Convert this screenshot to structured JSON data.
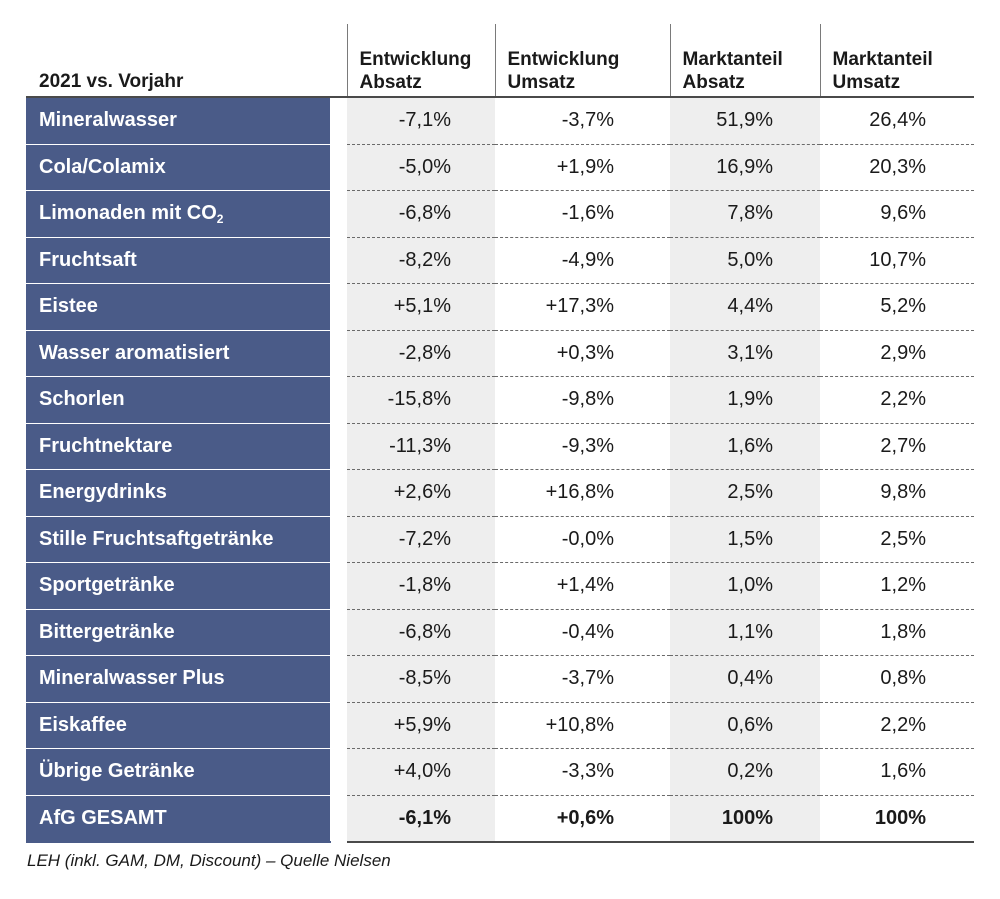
{
  "chart_data": {
    "type": "table",
    "columns": [
      "2021 vs. Vorjahr",
      "Entwicklung Absatz",
      "Entwicklung Umsatz",
      "Marktanteil Absatz",
      "Marktanteil Umsatz"
    ],
    "header_lines": {
      "corner": "2021 vs. Vorjahr",
      "col1": [
        "Entwicklung",
        "Absatz"
      ],
      "col2": [
        "Entwicklung",
        "Umsatz"
      ],
      "col3": [
        "Marktanteil",
        "Absatz"
      ],
      "col4": [
        "Marktanteil",
        "Umsatz"
      ]
    },
    "rows": [
      {
        "label": "Mineralwasser",
        "values": [
          "-7,1%",
          "-3,7%",
          "51,9%",
          "26,4%"
        ]
      },
      {
        "label": "Cola/Colamix",
        "values": [
          "-5,0%",
          "+1,9%",
          "16,9%",
          "20,3%"
        ]
      },
      {
        "label": "Limonaden mit CO",
        "label_sub": "2",
        "values": [
          "-6,8%",
          "-1,6%",
          "7,8%",
          "9,6%"
        ]
      },
      {
        "label": "Fruchtsaft",
        "values": [
          "-8,2%",
          "-4,9%",
          "5,0%",
          "10,7%"
        ]
      },
      {
        "label": "Eistee",
        "values": [
          "+5,1%",
          "+17,3%",
          "4,4%",
          "5,2%"
        ]
      },
      {
        "label": "Wasser aromatisiert",
        "values": [
          "-2,8%",
          "+0,3%",
          "3,1%",
          "2,9%"
        ]
      },
      {
        "label": "Schorlen",
        "values": [
          "-15,8%",
          "-9,8%",
          "1,9%",
          "2,2%"
        ]
      },
      {
        "label": "Fruchtnektare",
        "values": [
          "-11,3%",
          "-9,3%",
          "1,6%",
          "2,7%"
        ]
      },
      {
        "label": "Energydrinks",
        "values": [
          "+2,6%",
          "+16,8%",
          "2,5%",
          "9,8%"
        ]
      },
      {
        "label": "Stille Fruchtsaftgetränke",
        "values": [
          "-7,2%",
          "-0,0%",
          "1,5%",
          "2,5%"
        ]
      },
      {
        "label": "Sportgetränke",
        "values": [
          "-1,8%",
          "+1,4%",
          "1,0%",
          "1,2%"
        ]
      },
      {
        "label": "Bittergetränke",
        "values": [
          "-6,8%",
          "-0,4%",
          "1,1%",
          "1,8%"
        ]
      },
      {
        "label": "Mineralwasser Plus",
        "values": [
          "-8,5%",
          "-3,7%",
          "0,4%",
          "0,8%"
        ]
      },
      {
        "label": "Eiskaffee",
        "values": [
          "+5,9%",
          "+10,8%",
          "0,6%",
          "2,2%"
        ]
      },
      {
        "label": "Übrige Getränke",
        "values": [
          "+4,0%",
          "-3,3%",
          "0,2%",
          "1,6%"
        ]
      }
    ],
    "total": {
      "label": "AfG GESAMT",
      "values": [
        "-6,1%",
        "+0,6%",
        "100%",
        "100%"
      ]
    },
    "footnote": "LEH (inkl. GAM, DM, Discount) – Quelle Nielsen"
  },
  "colors": {
    "label_background": "#4a5b88",
    "shaded_column": "#eeeeee",
    "text": "#1a1a1a"
  }
}
